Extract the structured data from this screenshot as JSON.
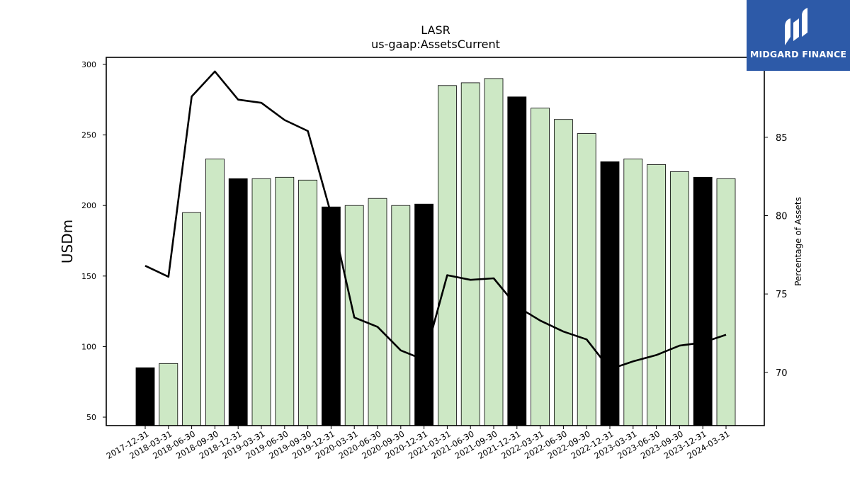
{
  "chart_data": {
    "type": "bar",
    "title": "LASR",
    "subtitle": "us-gaap:AssetsCurrent",
    "ylabel": "USDm",
    "y2label": "Percentage of Assets",
    "ylim": [
      44,
      305
    ],
    "y2lim": [
      66.6,
      90.1
    ],
    "yticks": [
      50,
      100,
      150,
      200,
      250,
      300
    ],
    "y2ticks": [
      70,
      75,
      80,
      85
    ],
    "grid": false,
    "categories": [
      "2017-12-31",
      "2018-03-31",
      "2018-06-30",
      "2018-09-30",
      "2018-12-31",
      "2019-03-31",
      "2019-06-30",
      "2019-09-30",
      "2019-12-31",
      "2020-03-31",
      "2020-06-30",
      "2020-09-30",
      "2020-12-31",
      "2021-03-31",
      "2021-06-30",
      "2021-09-30",
      "2021-12-31",
      "2022-03-31",
      "2022-06-30",
      "2022-09-30",
      "2022-12-31",
      "2023-03-31",
      "2023-06-30",
      "2023-09-30",
      "2023-12-31",
      "2024-03-31"
    ],
    "series": [
      {
        "type": "bar",
        "axis": "left",
        "values": [
          85,
          88,
          195,
          233,
          219,
          219,
          220,
          218,
          199,
          200,
          205,
          200,
          201,
          285,
          287,
          290,
          277,
          269,
          261,
          251,
          231,
          233,
          229,
          224,
          220,
          219
        ],
        "colors": [
          "#000000",
          "#cde8c5",
          "#cde8c5",
          "#cde8c5",
          "#000000",
          "#cde8c5",
          "#cde8c5",
          "#cde8c5",
          "#000000",
          "#cde8c5",
          "#cde8c5",
          "#cde8c5",
          "#000000",
          "#cde8c5",
          "#cde8c5",
          "#cde8c5",
          "#000000",
          "#cde8c5",
          "#cde8c5",
          "#cde8c5",
          "#000000",
          "#cde8c5",
          "#cde8c5",
          "#cde8c5",
          "#000000",
          "#cde8c5"
        ]
      },
      {
        "type": "line",
        "axis": "right",
        "color": "#000000",
        "values": [
          76.8,
          76.1,
          87.6,
          89.2,
          87.4,
          87.2,
          86.1,
          85.4,
          80.1,
          73.5,
          72.9,
          71.4,
          70.8,
          76.2,
          75.9,
          76.0,
          74.2,
          73.3,
          72.6,
          72.1,
          70.2,
          70.7,
          71.1,
          71.7,
          71.9,
          72.4
        ]
      }
    ]
  },
  "logo": {
    "text": "MIDGARD FINANCE",
    "bg_color": "#2d5aa8"
  }
}
